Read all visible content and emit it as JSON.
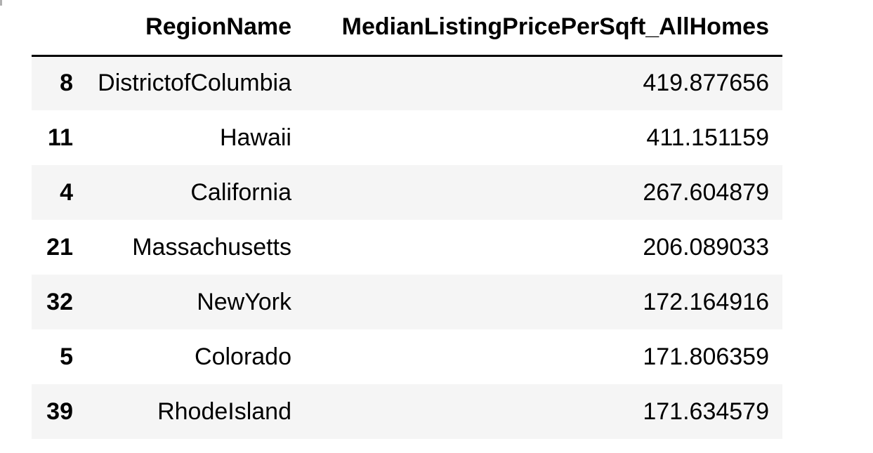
{
  "table": {
    "index_header": "",
    "columns": [
      "RegionName",
      "MedianListingPricePerSqft_AllHomes"
    ],
    "rows": [
      {
        "index": "8",
        "region": "DistrictofColumbia",
        "price": "419.877656"
      },
      {
        "index": "11",
        "region": "Hawaii",
        "price": "411.151159"
      },
      {
        "index": "4",
        "region": "California",
        "price": "267.604879"
      },
      {
        "index": "21",
        "region": "Massachusetts",
        "price": "206.089033"
      },
      {
        "index": "32",
        "region": "NewYork",
        "price": "172.164916"
      },
      {
        "index": "5",
        "region": "Colorado",
        "price": "171.806359"
      },
      {
        "index": "39",
        "region": "RhodeIsland",
        "price": "171.634579"
      }
    ]
  },
  "colors": {
    "stripe": "#f5f5f5",
    "text": "#000000",
    "header_rule": "#000000"
  }
}
